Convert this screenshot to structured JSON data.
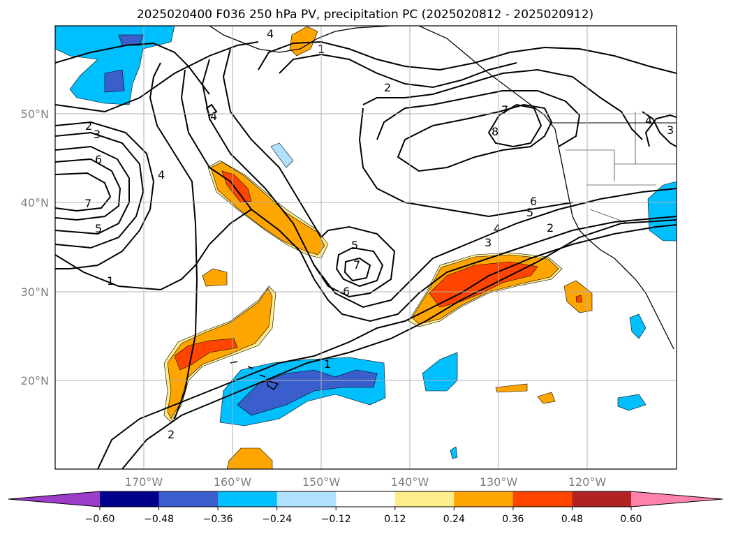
{
  "title": "2025020400 F036 250 hPa PV, precipitation PC (2025020812 - 2025020912)",
  "lat_labels": [
    "50°N",
    "40°N",
    "30°N",
    "20°N"
  ],
  "lon_labels": [
    "170°W",
    "160°W",
    "150°W",
    "140°W",
    "130°W",
    "120°W"
  ],
  "contour_labels": [
    "4",
    "2",
    "1",
    "2",
    "3",
    "6",
    "4",
    "7",
    "5",
    "1",
    "4",
    "7",
    "8",
    "6",
    "5",
    "4",
    "3",
    "2",
    "7",
    "5",
    "6",
    "1",
    "2",
    "4",
    "3"
  ],
  "colorbar": {
    "ticks": [
      "−0.60",
      "−0.48",
      "−0.36",
      "−0.24",
      "−0.12",
      "0.12",
      "0.24",
      "0.36",
      "0.48",
      "0.60"
    ],
    "colors": [
      "#9b3dc9",
      "#00008b",
      "#3a5fcd",
      "#00bfff",
      "#b0e2ff",
      "#ffffff",
      "#ffec8b",
      "#ffa500",
      "#ff4500",
      "#b22222",
      "#ff82ab"
    ]
  }
}
